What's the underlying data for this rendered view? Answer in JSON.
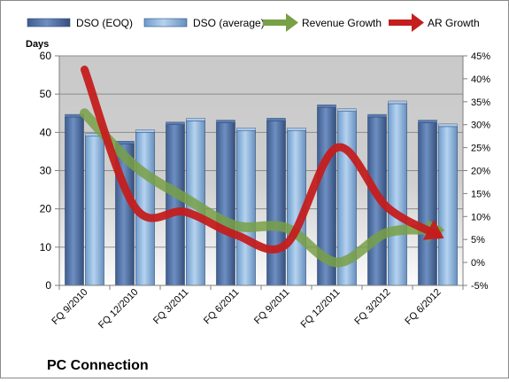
{
  "chart_data": {
    "type": "bar",
    "title": "PC Connection",
    "y_left_label": "Days",
    "categories": [
      "FQ 9/2010",
      "FQ 12/2010",
      "FQ 3/2011",
      "FQ 6/2011",
      "FQ 9/2011",
      "FQ 12/2011",
      "FQ 3/2012",
      "FQ 6/2012"
    ],
    "y_left_range": [
      0,
      60
    ],
    "y_left_ticks": [
      "0",
      "10",
      "20",
      "30",
      "40",
      "50",
      "60"
    ],
    "y_right_range": [
      -5,
      45
    ],
    "y_right_ticks": [
      "-5%",
      "0%",
      "5%",
      "10%",
      "15%",
      "20%",
      "25%",
      "30%",
      "35%",
      "40%",
      "45%"
    ],
    "grid": true,
    "legend_position": "top",
    "bar_series": [
      {
        "name": "DSO (EOQ)",
        "axis": "left",
        "color": "#4f6fa3",
        "values": [
          44,
          37,
          42,
          42.5,
          43,
          46.5,
          44,
          42.5
        ]
      },
      {
        "name": "DSO (average)",
        "axis": "left",
        "color": "#8eb6e0",
        "values": [
          39,
          40,
          43,
          40.5,
          40.5,
          45.5,
          47.5,
          41.5
        ]
      }
    ],
    "line_series": [
      {
        "name": "Revenue Growth",
        "axis": "right",
        "color": "#78a046",
        "values": [
          32.5,
          21,
          14,
          8,
          7.5,
          0,
          6.5,
          7
        ]
      },
      {
        "name": "AR Growth",
        "axis": "right",
        "color": "#c41e1e",
        "values": [
          42,
          12,
          11,
          6,
          4,
          25,
          12,
          6
        ]
      }
    ]
  }
}
